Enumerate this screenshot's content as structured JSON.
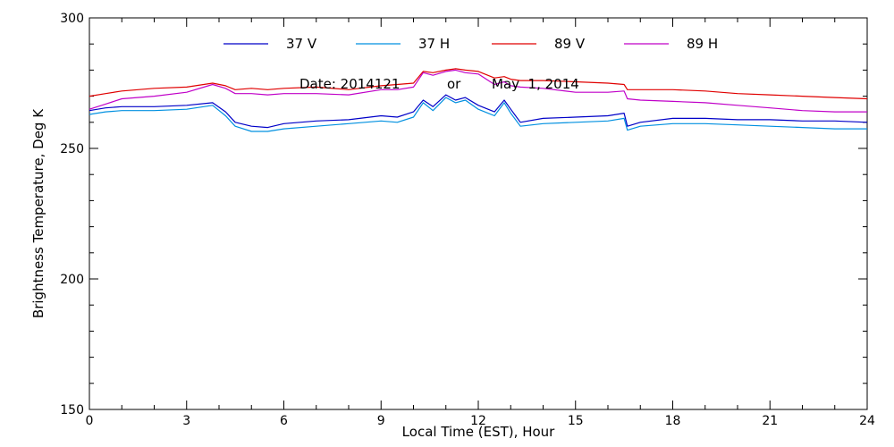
{
  "chart_data": {
    "type": "line",
    "title": "",
    "xlabel": "Local Time (EST), Hour",
    "ylabel": "Brightness Temperature, Deg K",
    "xlim": [
      0,
      24
    ],
    "ylim": [
      150,
      300
    ],
    "x_ticks": [
      "0",
      "3",
      "6",
      "9",
      "12",
      "15",
      "18",
      "21",
      "24"
    ],
    "y_ticks": [
      "150",
      "200",
      "250",
      "300"
    ],
    "grid": false,
    "legend_position": "top-center",
    "annotation": {
      "date_label": "Date: 2014121",
      "or_label": "or",
      "date_text": "May  1, 2014"
    },
    "x": [
      0,
      0.5,
      1,
      2,
      3,
      3.8,
      4.2,
      4.5,
      5,
      5.5,
      6,
      7,
      8,
      9,
      9.5,
      10,
      10.3,
      10.6,
      11,
      11.3,
      11.6,
      12,
      12.5,
      12.8,
      13,
      13.3,
      14,
      15,
      16,
      16.5,
      16.6,
      17,
      18,
      19,
      20,
      21,
      22,
      23,
      24
    ],
    "series": [
      {
        "name": "37 V",
        "color": "#0000c8",
        "values": [
          264.5,
          265.5,
          266,
          266,
          266.5,
          267.5,
          264,
          260,
          258.5,
          258,
          259.5,
          260.5,
          261,
          262.5,
          262,
          264,
          268.5,
          266,
          270.5,
          268.5,
          269.5,
          266.5,
          264,
          268.5,
          265,
          260,
          261.5,
          262,
          262.5,
          263.5,
          258.5,
          260,
          261.5,
          261.5,
          261,
          261,
          260.5,
          260.5,
          260
        ]
      },
      {
        "name": "37 H",
        "color": "#0090e0",
        "values": [
          263,
          264,
          264.5,
          264.5,
          265,
          266.5,
          262.5,
          258.5,
          256.5,
          256.5,
          257.5,
          258.5,
          259.5,
          260.5,
          260,
          262,
          267.5,
          264.5,
          269.5,
          267.5,
          268.5,
          265,
          262.5,
          267.5,
          263.5,
          258.5,
          259.5,
          260,
          260.5,
          261.5,
          257,
          258.5,
          259.5,
          259.5,
          259,
          258.5,
          258,
          257.5,
          257.5
        ]
      },
      {
        "name": "89 V",
        "color": "#e00000",
        "values": [
          270,
          271,
          272,
          273,
          273.5,
          275,
          274,
          272.5,
          273,
          272.5,
          273,
          273.5,
          272.5,
          274,
          274.5,
          275,
          279.5,
          279,
          280,
          280.5,
          280,
          279.5,
          277,
          277.5,
          276.5,
          276,
          276,
          275.5,
          275,
          274.5,
          272.5,
          272.5,
          272.5,
          272,
          271,
          270.5,
          270,
          269.5,
          269
        ]
      },
      {
        "name": "89 H",
        "color": "#c000c8",
        "values": [
          265,
          267,
          269,
          270,
          271.5,
          274.5,
          273,
          271,
          271,
          270.5,
          271,
          271,
          270.5,
          272.5,
          272.5,
          273.5,
          279,
          278,
          279.5,
          280,
          279,
          278.5,
          274.5,
          275.5,
          274,
          273.5,
          273,
          271.5,
          271.5,
          272,
          269,
          268.5,
          268,
          267.5,
          266.5,
          265.5,
          264.5,
          264,
          264
        ]
      }
    ]
  }
}
